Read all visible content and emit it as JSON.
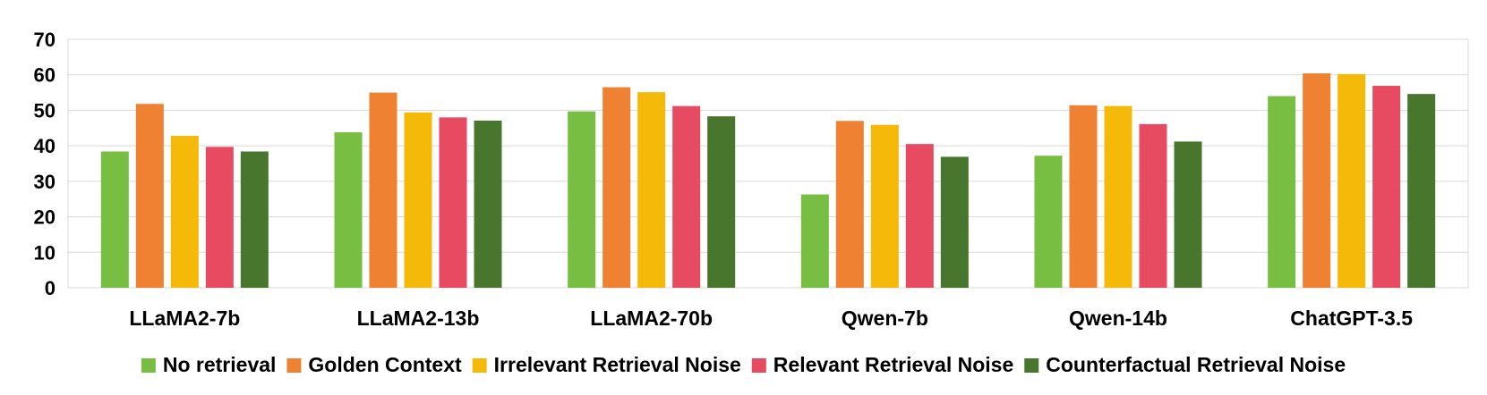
{
  "chart_data": {
    "type": "bar",
    "title": "",
    "xlabel": "",
    "ylabel": "",
    "ylim": [
      0,
      70
    ],
    "yticks": [
      0,
      10,
      20,
      30,
      40,
      50,
      60,
      70
    ],
    "grid": true,
    "legend_position": "bottom",
    "categories": [
      "LLaMA2-7b",
      "LLaMA2-13b",
      "LLaMA2-70b",
      "Qwen-7b",
      "Qwen-14b",
      "ChatGPT-3.5"
    ],
    "series": [
      {
        "name": "No retrieval",
        "color": "#77BE43",
        "values": [
          38.4,
          43.8,
          49.7,
          26.3,
          37.2,
          54.0
        ]
      },
      {
        "name": "Golden Context",
        "color": "#EF8232",
        "values": [
          51.8,
          55.0,
          56.5,
          47.0,
          51.4,
          60.4
        ]
      },
      {
        "name": "Irrelevant Retrieval Noise",
        "color": "#F4B909",
        "values": [
          42.8,
          49.4,
          55.1,
          45.9,
          51.2,
          60.2
        ]
      },
      {
        "name": "Relevant Retrieval Noise",
        "color": "#E64B61",
        "values": [
          39.7,
          48.0,
          51.2,
          40.5,
          46.1,
          56.9
        ]
      },
      {
        "name": "Counterfactual Retrieval Noise",
        "color": "#47762C",
        "values": [
          38.4,
          47.1,
          48.3,
          36.9,
          41.2,
          54.6
        ]
      }
    ]
  }
}
